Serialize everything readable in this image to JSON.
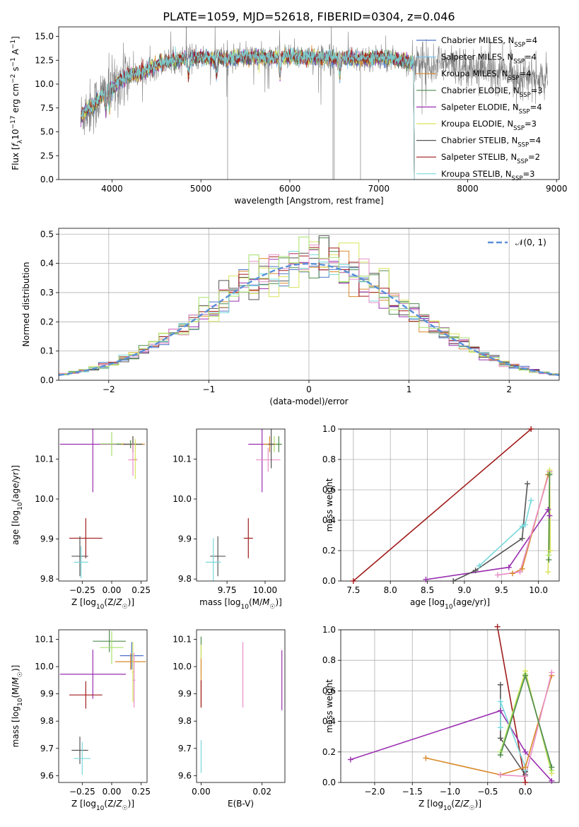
{
  "figure": {
    "title": "PLATE=1059, MJD=52618, FIBERID=0304, z=0.046"
  },
  "chart_data": [
    {
      "type": "line",
      "id": "spectrum",
      "xlabel": "wavelength [Angstrom, rest frame]",
      "ylabel": "Flux [fλ10^-17 erg cm^-2 s^-1 A^-1]",
      "xlim": [
        3400,
        9030
      ],
      "ylim": [
        0,
        16
      ],
      "xticks": [
        4000,
        5000,
        6000,
        7000,
        8000,
        9000
      ],
      "yticks": [
        0.0,
        2.5,
        5.0,
        7.5,
        10.0,
        12.5,
        15.0
      ],
      "grid": false,
      "legend_position": "right",
      "legend": [
        {
          "text": "Chabrier MILES, N",
          "sub": "SSP",
          "suffix": "=4",
          "color": "#4a72c7"
        },
        {
          "text": "Salpeter MILES, N",
          "sub": "SSP",
          "suffix": "=4",
          "color": "#7cc7ef"
        },
        {
          "text": "Kroupa MILES, N",
          "sub": "SSP",
          "suffix": "=4",
          "color": "#d98a2b"
        },
        {
          "text": "Chabrier ELODIE, N",
          "sub": "SSP",
          "suffix": "=3",
          "color": "#4f8a4f"
        },
        {
          "text": "Salpeter ELODIE, N",
          "sub": "SSP",
          "suffix": "=4",
          "color": "#9a2fb0"
        },
        {
          "text": "Kroupa ELODIE, N",
          "sub": "SSP",
          "suffix": "=3",
          "color": "#d9e35a"
        },
        {
          "text": "Chabrier STELIB, N",
          "sub": "SSP",
          "suffix": "=4",
          "color": "#555555"
        },
        {
          "text": "Salpeter STELIB, N",
          "sub": "SSP",
          "suffix": "=2",
          "color": "#a01b1b"
        },
        {
          "text": "Kroupa STELIB, N",
          "sub": "SSP",
          "suffix": "=3",
          "color": "#79d8dc"
        }
      ],
      "series": [
        {
          "role": "data",
          "color": "#808080",
          "x_range": [
            3650,
            8900
          ],
          "anchors": [
            [
              3650,
              6.5
            ],
            [
              3700,
              7.2
            ],
            [
              3800,
              7.8
            ],
            [
              3900,
              9.0
            ],
            [
              4000,
              9.5
            ],
            [
              4100,
              10.4
            ],
            [
              4200,
              10.9
            ],
            [
              4300,
              11.0
            ],
            [
              4400,
              11.4
            ],
            [
              4500,
              12.0
            ],
            [
              4700,
              12.5
            ],
            [
              5000,
              12.8
            ],
            [
              5300,
              12.6
            ],
            [
              5500,
              12.9
            ],
            [
              5800,
              12.7
            ],
            [
              6000,
              12.9
            ],
            [
              6300,
              12.8
            ],
            [
              6500,
              12.7
            ],
            [
              6800,
              12.6
            ],
            [
              7000,
              12.8
            ],
            [
              7300,
              12.4
            ],
            [
              7600,
              12.2
            ],
            [
              7900,
              12.0
            ],
            [
              8200,
              11.6
            ],
            [
              8500,
              11.0
            ],
            [
              8900,
              10.4
            ]
          ]
        },
        {
          "role": "models",
          "x_range": [
            3650,
            7400
          ],
          "end_drop": 7400
        }
      ]
    },
    {
      "type": "histogram",
      "id": "residuals",
      "xlabel": "(data-model)/error",
      "ylabel": "Normed distribution",
      "xlim": [
        -2.5,
        2.5
      ],
      "ylim": [
        0,
        0.52
      ],
      "xticks": [
        -2,
        -1,
        0,
        1,
        2
      ],
      "yticks": [
        0.0,
        0.1,
        0.2,
        0.3,
        0.4,
        0.5
      ],
      "grid": true,
      "legend_position": "top-right",
      "legend": [
        {
          "text": "𝒩(0, 1)",
          "color": "#5a8fd8",
          "style": "dashed"
        }
      ],
      "bin_width": 0.1,
      "series_colors": [
        "#4a72c7",
        "#d98a2b",
        "#4f8a4f",
        "#9a2fb0",
        "#d9e35a",
        "#555555",
        "#a01b1b",
        "#79d8dc",
        "#e88fc7",
        "#a6e06a"
      ]
    },
    {
      "type": "scatter",
      "id": "age-vs-Z",
      "xlabel": "Z [log10(Z/Z☉)]",
      "ylabel": "age [log10(age/yr)]",
      "xlim": [
        -0.45,
        0.3
      ],
      "ylim": [
        9.795,
        10.175
      ],
      "xticks": [
        -0.25,
        0.0,
        0.25
      ],
      "yticks": [
        9.8,
        9.9,
        10.0,
        10.1
      ],
      "grid": false,
      "points": [
        {
          "x": -0.16,
          "y": 10.137,
          "xerr": 0.28,
          "yerr": 0.12,
          "color": "#9a2fb0"
        },
        {
          "x": 0.0,
          "y": 10.138,
          "xerr": 0.1,
          "yerr": 0.03,
          "color": "#a6e06a"
        },
        {
          "x": 0.16,
          "y": 10.137,
          "xerr": 0.12,
          "yerr": 0.01,
          "color": "#4f8a4f"
        },
        {
          "x": 0.18,
          "y": 10.137,
          "xerr": 0.1,
          "yerr": 0.02,
          "color": "#d98a2b"
        },
        {
          "x": 0.18,
          "y": 10.137,
          "xerr": 0.08,
          "yerr": 0.02,
          "color": "#555555"
        },
        {
          "x": 0.18,
          "y": 10.098,
          "xerr": 0.04,
          "yerr": 0.04,
          "color": "#e88fc7"
        },
        {
          "x": 0.2,
          "y": 10.1,
          "xerr": 0.01,
          "yerr": 0.05,
          "color": "#d9e35a"
        },
        {
          "x": -0.22,
          "y": 9.902,
          "xerr": 0.14,
          "yerr": 0.05,
          "color": "#a01b1b"
        },
        {
          "x": -0.27,
          "y": 9.857,
          "xerr": 0.07,
          "yerr": 0.05,
          "color": "#555555"
        },
        {
          "x": -0.26,
          "y": 9.842,
          "xerr": 0.06,
          "yerr": 0.04,
          "color": "#79d8dc"
        }
      ]
    },
    {
      "type": "scatter",
      "id": "age-vs-mass",
      "xlabel": "mass [log10(M/M☉)]",
      "ylabel": "",
      "xlim": [
        9.55,
        10.13
      ],
      "ylim": [
        9.795,
        10.175
      ],
      "xticks": [
        9.75,
        10.0
      ],
      "yticks": [
        9.8,
        9.9,
        10.0,
        10.1
      ],
      "grid": false,
      "points": [
        {
          "x": 9.98,
          "y": 10.137,
          "xerr": 0.09,
          "yerr": 0.12,
          "color": "#9a2fb0"
        },
        {
          "x": 10.06,
          "y": 10.137,
          "xerr": 0.05,
          "yerr": 0.02,
          "color": "#a6e06a"
        },
        {
          "x": 10.09,
          "y": 10.137,
          "xerr": 0.02,
          "yerr": 0.02,
          "color": "#4f8a4f"
        },
        {
          "x": 10.03,
          "y": 10.137,
          "xerr": 0.04,
          "yerr": 0.02,
          "color": "#d98a2b"
        },
        {
          "x": 10.02,
          "y": 10.098,
          "xerr": 0.08,
          "yerr": 0.03,
          "color": "#e88fc7"
        },
        {
          "x": 10.04,
          "y": 10.137,
          "xerr": 0.02,
          "yerr": 0.06,
          "color": "#555555"
        },
        {
          "x": 9.89,
          "y": 9.902,
          "xerr": 0.03,
          "yerr": 0.05,
          "color": "#a01b1b"
        },
        {
          "x": 9.69,
          "y": 9.857,
          "xerr": 0.05,
          "yerr": 0.05,
          "color": "#555555"
        },
        {
          "x": 9.66,
          "y": 9.842,
          "xerr": 0.05,
          "yerr": 0.06,
          "color": "#79d8dc"
        }
      ]
    },
    {
      "type": "line",
      "id": "mass-weight-vs-age",
      "xlabel": "age [log10(age/yr)]",
      "ylabel": "mass weight",
      "xlim": [
        7.33,
        10.28
      ],
      "ylim": [
        0,
        1
      ],
      "xticks": [
        7.5,
        8.0,
        8.5,
        9.0,
        9.5,
        10.0
      ],
      "yticks": [
        0.0,
        0.2,
        0.4,
        0.6,
        0.8,
        1.0
      ],
      "grid": true,
      "series": [
        {
          "color": "#a01b1b",
          "points": [
            [
              7.5,
              0.0
            ],
            [
              9.9,
              1.0
            ]
          ]
        },
        {
          "color": "#9a2fb0",
          "points": [
            [
              8.48,
              0.01
            ],
            [
              9.6,
              0.09
            ],
            [
              10.13,
              0.47
            ],
            [
              10.15,
              0.43
            ]
          ]
        },
        {
          "color": "#555555",
          "points": [
            [
              8.85,
              0.0
            ],
            [
              9.15,
              0.07
            ],
            [
              9.78,
              0.28
            ],
            [
              9.85,
              0.64
            ]
          ]
        },
        {
          "color": "#79d8dc",
          "points": [
            [
              9.2,
              0.1
            ],
            [
              9.78,
              0.36
            ],
            [
              9.82,
              0.37
            ],
            [
              9.9,
              0.53
            ]
          ]
        },
        {
          "color": "#d98a2b",
          "points": [
            [
              9.65,
              0.05
            ],
            [
              9.78,
              0.08
            ],
            [
              10.13,
              0.7
            ],
            [
              10.15,
              0.72
            ]
          ]
        },
        {
          "color": "#e88fc7",
          "points": [
            [
              9.45,
              0.04
            ],
            [
              9.75,
              0.06
            ],
            [
              10.15,
              0.72
            ]
          ]
        },
        {
          "color": "#d9e35a",
          "points": [
            [
              10.13,
              0.06
            ],
            [
              10.15,
              0.73
            ],
            [
              10.16,
              0.2
            ]
          ]
        },
        {
          "color": "#a6e06a",
          "points": [
            [
              10.14,
              0.17
            ],
            [
              10.15,
              0.71
            ]
          ]
        },
        {
          "color": "#4f8a4f",
          "points": [
            [
              10.14,
              0.14
            ],
            [
              10.15,
              0.7
            ]
          ]
        }
      ]
    },
    {
      "type": "scatter",
      "id": "mass-vs-Z",
      "xlabel": "Z [log10(Z/Z☉)]",
      "ylabel": "mass [log10(M/M☉)]",
      "xlim": [
        -0.45,
        0.3
      ],
      "ylim": [
        9.575,
        10.135
      ],
      "xticks": [
        -0.25,
        0.0,
        0.25
      ],
      "yticks": [
        9.6,
        9.7,
        9.8,
        9.9,
        10.0,
        10.1
      ],
      "grid": false,
      "points": [
        {
          "x": -0.16,
          "y": 9.972,
          "xerr": 0.28,
          "yerr": 0.09,
          "color": "#9a2fb0"
        },
        {
          "x": -0.02,
          "y": 10.093,
          "xerr": 0.14,
          "yerr": 0.04,
          "color": "#4f8a4f"
        },
        {
          "x": 0.0,
          "y": 10.07,
          "xerr": 0.1,
          "yerr": 0.06,
          "color": "#a6e06a"
        },
        {
          "x": 0.17,
          "y": 10.04,
          "xerr": 0.1,
          "yerr": 0.05,
          "color": "#4a72c7"
        },
        {
          "x": 0.16,
          "y": 10.018,
          "xerr": 0.13,
          "yerr": 0.03,
          "color": "#d98a2b"
        },
        {
          "x": 0.18,
          "y": 9.98,
          "xerr": 0.01,
          "yerr": 0.11,
          "color": "#d9e35a"
        },
        {
          "x": 0.19,
          "y": 9.95,
          "xerr": 0.01,
          "yerr": 0.1,
          "color": "#e88fc7"
        },
        {
          "x": -0.22,
          "y": 9.896,
          "xerr": 0.14,
          "yerr": 0.05,
          "color": "#a01b1b"
        },
        {
          "x": -0.27,
          "y": 9.693,
          "xerr": 0.07,
          "yerr": 0.05,
          "color": "#555555"
        },
        {
          "x": -0.25,
          "y": 9.663,
          "xerr": 0.07,
          "yerr": 0.06,
          "color": "#79d8dc"
        }
      ]
    },
    {
      "type": "scatter",
      "id": "mass-vs-ebv",
      "xlabel": "E(B-V)",
      "ylabel": "",
      "xlim": [
        -0.0015,
        0.0275
      ],
      "ylim": [
        9.575,
        10.135
      ],
      "xticks": [
        0.0,
        0.02
      ],
      "yticks": [
        9.6,
        9.7,
        9.8,
        9.9,
        10.0,
        10.1
      ],
      "grid": false,
      "points": [
        {
          "x": 0.0,
          "y": 10.07,
          "xerr": 0.0,
          "yerr": 0.04,
          "color": "#4f8a4f"
        },
        {
          "x": 0.0,
          "y": 10.02,
          "xerr": 0.0,
          "yerr": 0.06,
          "color": "#d9e35a"
        },
        {
          "x": 0.0,
          "y": 9.94,
          "xerr": 0.0,
          "yerr": 0.09,
          "color": "#d98a2b"
        },
        {
          "x": 0.0,
          "y": 9.9,
          "xerr": 0.0,
          "yerr": 0.05,
          "color": "#a01b1b"
        },
        {
          "x": 0.0,
          "y": 9.67,
          "xerr": 0.0,
          "yerr": 0.06,
          "color": "#79d8dc"
        },
        {
          "x": 0.0137,
          "y": 9.97,
          "xerr": 0.0,
          "yerr": 0.12,
          "color": "#e88fc7"
        },
        {
          "x": 0.0265,
          "y": 9.95,
          "xerr": 0.0,
          "yerr": 0.11,
          "color": "#9a2fb0"
        }
      ]
    },
    {
      "type": "line",
      "id": "mass-weight-vs-Z",
      "xlabel": "Z [log10(Z/Z☉)]",
      "ylabel": "mass weight",
      "xlim": [
        -2.45,
        0.45
      ],
      "ylim": [
        0,
        1
      ],
      "xticks": [
        -2.0,
        -1.5,
        -1.0,
        -0.5,
        0.0
      ],
      "yticks": [
        0.0,
        0.2,
        0.4,
        0.6,
        0.8,
        1.0
      ],
      "grid": true,
      "series": [
        {
          "color": "#a01b1b",
          "points": [
            [
              -0.37,
              1.02
            ],
            [
              0.0,
              0.0
            ]
          ]
        },
        {
          "color": "#9a2fb0",
          "points": [
            [
              -2.32,
              0.15
            ],
            [
              -0.33,
              0.47
            ],
            [
              0.0,
              0.2
            ],
            [
              0.35,
              0.01
            ]
          ]
        },
        {
          "color": "#555555",
          "points": [
            [
              -0.33,
              0.64
            ],
            [
              -0.33,
              0.29
            ],
            [
              0.0,
              0.05
            ],
            [
              0.0,
              0.07
            ]
          ]
        },
        {
          "color": "#79d8dc",
          "points": [
            [
              -0.33,
              0.36
            ],
            [
              -0.33,
              0.53
            ],
            [
              0.0,
              0.1
            ],
            [
              0.0,
              0.08
            ]
          ]
        },
        {
          "color": "#d98a2b",
          "points": [
            [
              -1.32,
              0.16
            ],
            [
              -0.33,
              0.05
            ],
            [
              0.0,
              0.1
            ],
            [
              0.35,
              0.7
            ]
          ]
        },
        {
          "color": "#e88fc7",
          "points": [
            [
              -0.33,
              0.05
            ],
            [
              0.0,
              0.04
            ],
            [
              0.35,
              0.72
            ]
          ]
        },
        {
          "color": "#d9e35a",
          "points": [
            [
              -0.33,
              0.2
            ],
            [
              0.0,
              0.73
            ],
            [
              0.35,
              0.06
            ]
          ]
        },
        {
          "color": "#a6e06a",
          "points": [
            [
              -0.33,
              0.2
            ],
            [
              0.0,
              0.71
            ],
            [
              0.35,
              0.08
            ]
          ]
        },
        {
          "color": "#4f8a4f",
          "points": [
            [
              -0.33,
              0.18
            ],
            [
              0.0,
              0.7
            ],
            [
              0.35,
              0.1
            ]
          ]
        }
      ]
    }
  ]
}
